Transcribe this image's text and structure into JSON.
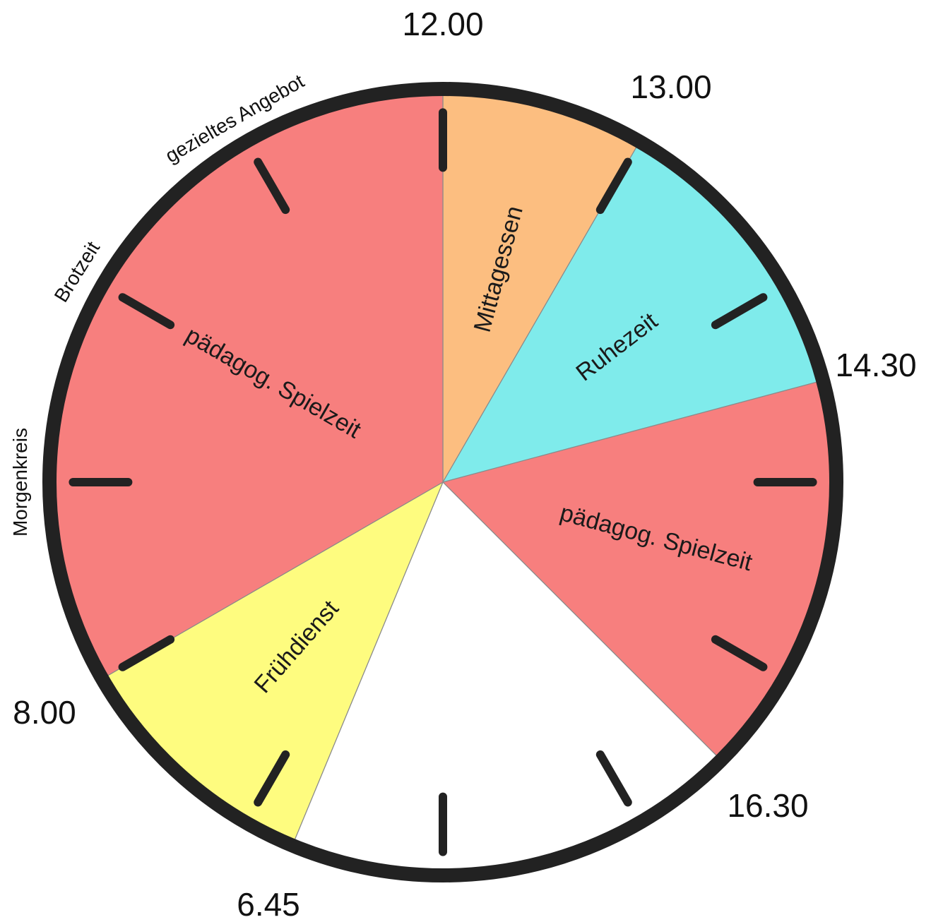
{
  "chart_data": {
    "type": "pie",
    "segments": [
      {
        "label": "Mittagessen",
        "start": "12.00",
        "end": "13.00",
        "color": "#FCBE80"
      },
      {
        "label": "Ruhezeit",
        "start": "13.00",
        "end": "14.30",
        "color": "#7FEBEB"
      },
      {
        "label": "pädagog. Spielzeit",
        "start": "14.30",
        "end": "16.30",
        "color": "#F77F7E"
      },
      {
        "label": "",
        "start": "16.30",
        "end": "6.45",
        "color": "#FFFFFF"
      },
      {
        "label": "Frühdienst",
        "start": "6.45",
        "end": "8.00",
        "color": "#FEFC7F"
      },
      {
        "label": "pädagog. Spielzeit",
        "start": "8.00",
        "end": "12.00",
        "color": "#F77F7E"
      }
    ],
    "time_labels": [
      "12.00",
      "13.00",
      "14.30",
      "16.30",
      "6.45",
      "8.00"
    ],
    "activity_labels": [
      "Morgenkreis",
      "Brotzeit",
      "gezieltes Angebot"
    ]
  }
}
